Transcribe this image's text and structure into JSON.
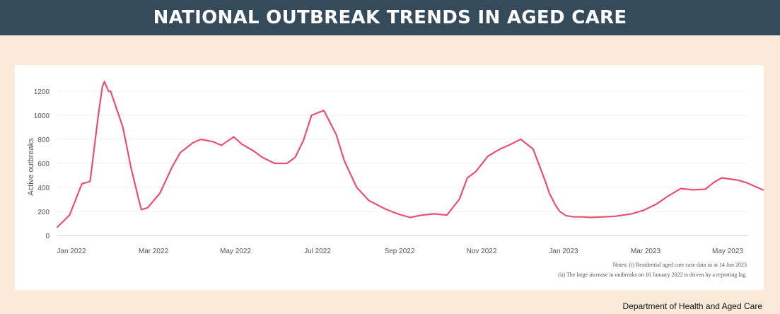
{
  "header": {
    "title": "NATIONAL OUTBREAK TRENDS IN AGED CARE"
  },
  "colors": {
    "header_bg": "#364b59",
    "page_bg": "#fbe9d9",
    "line": "#e8506f"
  },
  "notes": {
    "line1": "Notes: (i) Residential aged care case data as at 14 Jun 2023",
    "line2": "(ii) The large increase in outbreaks on 16 January 2022 is driven by a reporting lag."
  },
  "source": "Department of Health and Aged Care",
  "chart_data": {
    "type": "line",
    "title": "NATIONAL OUTBREAK TRENDS IN AGED CARE",
    "xlabel": "",
    "ylabel": "Active outbreaks",
    "ylim": [
      0,
      1300
    ],
    "yticks": [
      "0",
      "200",
      "400",
      "600",
      "800",
      "1000",
      "1200"
    ],
    "xticks": [
      "Jan 2022",
      "Mar 2022",
      "May 2022",
      "Jul 2022",
      "Sep 2022",
      "Nov 2022",
      "Jan 2023",
      "Mar 2023",
      "May 2023"
    ],
    "grid": true,
    "series": [
      {
        "name": "Active outbreaks",
        "month_index": [
          0,
          0.3,
          0.6,
          0.8,
          1.0,
          1.1,
          1.15,
          1.25,
          1.3,
          1.35,
          1.5,
          1.6,
          1.8,
          2.0,
          2.05,
          2.2,
          2.5,
          2.8,
          3.0,
          3.3,
          3.5,
          3.8,
          4.0,
          4.3,
          4.5,
          4.8,
          5.0,
          5.3,
          5.6,
          5.8,
          6.0,
          6.2,
          6.5,
          6.8,
          7.0,
          7.3,
          7.6,
          8.0,
          8.3,
          8.6,
          8.9,
          9.2,
          9.5,
          9.8,
          10.0,
          10.2,
          10.5,
          10.8,
          11.0,
          11.3,
          11.6,
          11.9,
          12.0,
          12.15,
          12.25,
          12.4,
          12.6,
          12.8,
          13.0,
          13.3,
          13.6,
          14.0,
          14.3,
          14.6,
          14.9,
          15.2,
          15.5,
          15.8,
          16.0,
          16.2,
          16.4,
          16.6,
          16.8,
          17.0,
          17.2,
          17.35
        ],
        "values": [
          70,
          170,
          430,
          450,
          1000,
          1240,
          1280,
          1200,
          1200,
          1150,
          1000,
          900,
          560,
          280,
          215,
          230,
          350,
          570,
          690,
          770,
          800,
          780,
          750,
          820,
          760,
          700,
          650,
          600,
          600,
          650,
          790,
          1000,
          1040,
          840,
          620,
          400,
          290,
          220,
          180,
          150,
          170,
          180,
          170,
          300,
          480,
          530,
          660,
          720,
          750,
          800,
          720,
          450,
          350,
          250,
          200,
          165,
          155,
          155,
          150,
          155,
          160,
          180,
          210,
          260,
          330,
          390,
          380,
          385,
          440,
          480,
          470,
          460,
          440,
          410,
          380,
          375
        ]
      }
    ]
  }
}
